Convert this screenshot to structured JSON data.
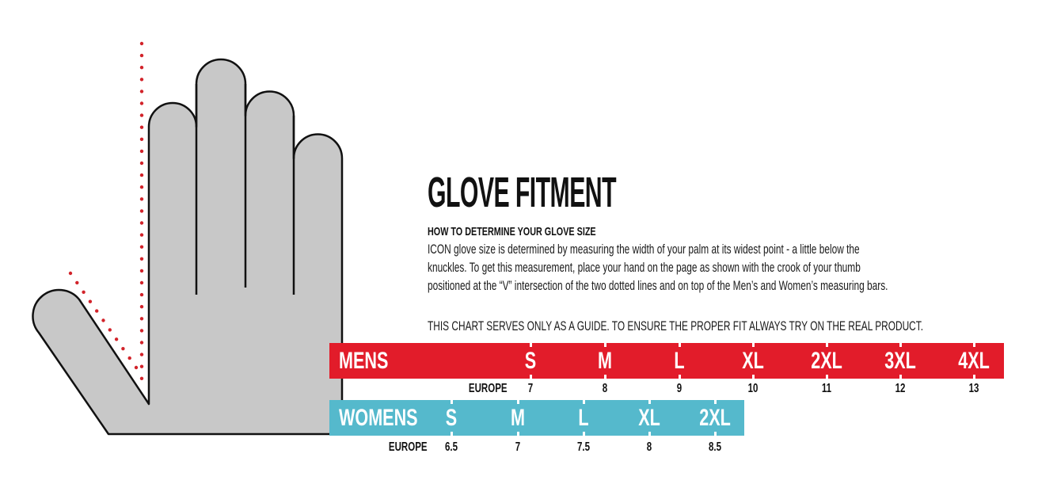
{
  "title": "GLOVE FITMENT",
  "subheading": "HOW TO DETERMINE YOUR GLOVE SIZE",
  "description_lines": [
    "ICON glove size is determined by measuring the width of your palm at its widest point - a little below the",
    "knuckles. To get this measurement, place your hand on the page as shown with the crook of your thumb",
    "positioned at the “V” intersection of the two dotted lines and on top of the Men’s and Women’s measuring bars."
  ],
  "disclaimer": "THIS CHART SERVES ONLY AS A GUIDE. TO ENSURE THE PROPER FIT ALWAYS TRY ON THE REAL PRODUCT.",
  "colors": {
    "mens": "#e21c2a",
    "womens": "#55b9cc",
    "hand_fill": "#c8c8c8",
    "dots": "#d2232a"
  },
  "illustration": "hand-outline-with-dotted-measuring-lines",
  "mens": {
    "label": "MENS",
    "europe_label": "EUROPE",
    "sizes": [
      "S",
      "M",
      "L",
      "XL",
      "2XL",
      "3XL",
      "4XL"
    ],
    "europe": [
      "7",
      "8",
      "9",
      "10",
      "11",
      "12",
      "13"
    ]
  },
  "womens": {
    "label": "WOMENS",
    "europe_label": "EUROPE",
    "sizes": [
      "S",
      "M",
      "L",
      "XL",
      "2XL"
    ],
    "europe": [
      "6.5",
      "7",
      "7.5",
      "8",
      "8.5"
    ]
  }
}
